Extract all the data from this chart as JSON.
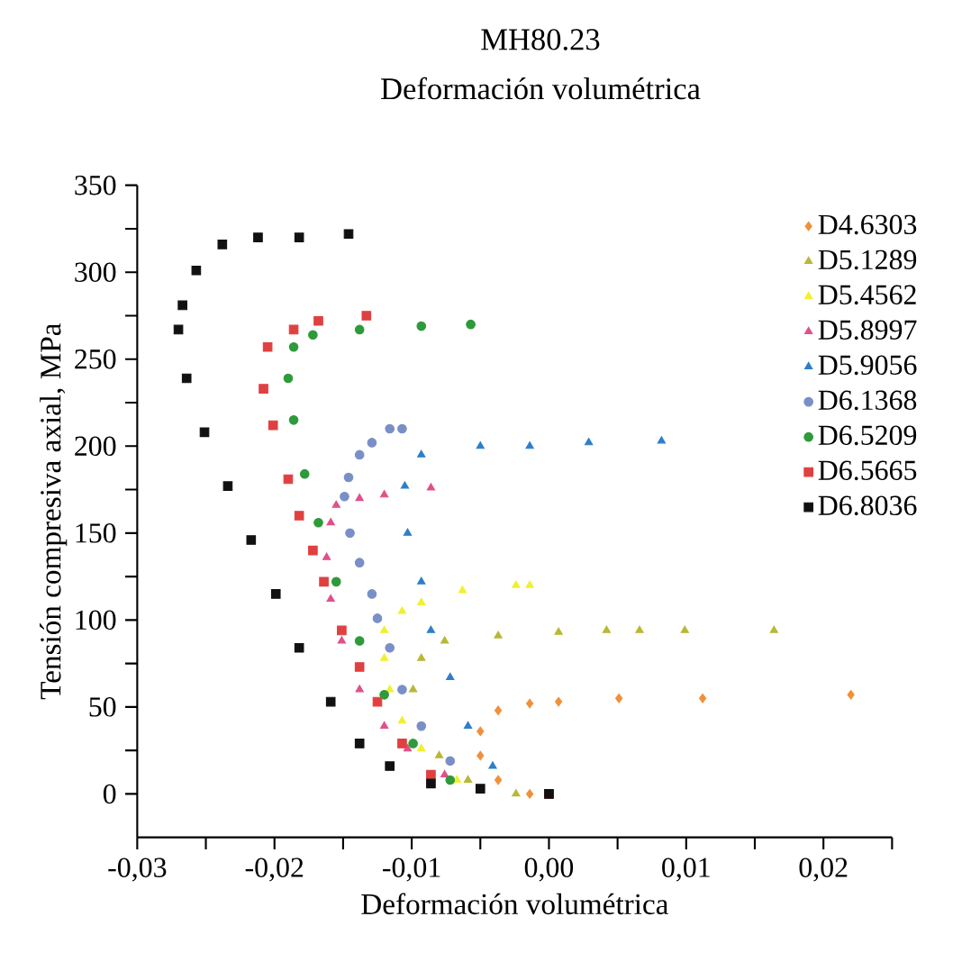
{
  "chart_data": {
    "type": "scatter",
    "title": "MH80.23",
    "subtitle": "Deformación volumétrica",
    "xlabel": "Deformación volumétrica",
    "ylabel": "Tensión compresiva axial, MPa",
    "xlim": [
      -0.03,
      0.025
    ],
    "ylim": [
      -25,
      350
    ],
    "xticks": [
      {
        "value": -0.03,
        "label": "-0,03"
      },
      {
        "value": -0.025,
        "label": null
      },
      {
        "value": -0.02,
        "label": "-0,02"
      },
      {
        "value": -0.015,
        "label": null
      },
      {
        "value": -0.01,
        "label": "-0,01"
      },
      {
        "value": -0.005,
        "label": null
      },
      {
        "value": 0.0,
        "label": "0,00"
      },
      {
        "value": 0.005,
        "label": null
      },
      {
        "value": 0.01,
        "label": "0,01"
      },
      {
        "value": 0.015,
        "label": null
      },
      {
        "value": 0.02,
        "label": "0,02"
      },
      {
        "value": 0.025,
        "label": null
      }
    ],
    "yticks": [
      0,
      {
        "value": 25,
        "label": null
      },
      50,
      {
        "value": 75,
        "label": null
      },
      100,
      {
        "value": 125,
        "label": null
      },
      150,
      {
        "value": 175,
        "label": null
      },
      200,
      {
        "value": 225,
        "label": null
      },
      250,
      {
        "value": 275,
        "label": null
      },
      300,
      {
        "value": 325,
        "label": null
      },
      350
    ],
    "legend": "top right",
    "grid": false,
    "series": [
      {
        "name": "D4.6303",
        "color": "#f0903a",
        "marker": "diamond",
        "x": [
          -0.0014,
          -0.0037,
          -0.005,
          -0.005,
          -0.0037,
          -0.0014,
          0.0007,
          0.0051,
          0.0112,
          0.022
        ],
        "values": [
          0,
          8,
          22,
          36,
          48,
          52,
          53,
          55,
          55,
          57
        ]
      },
      {
        "name": "D5.1289",
        "color": "#b8b838",
        "marker": "triangle",
        "x": [
          -0.0024,
          -0.0059,
          -0.008,
          -0.0093,
          -0.0099,
          -0.0093,
          -0.0076,
          -0.0037,
          0.0007,
          0.0042,
          0.0066,
          0.0099,
          0.0164
        ],
        "values": [
          0,
          8,
          22,
          null,
          60,
          78,
          88,
          91,
          93,
          94,
          94,
          94,
          94
        ]
      },
      {
        "name": "D5.4562",
        "color": "#f0f030",
        "marker": "triangle",
        "x": [
          -0.0067,
          -0.0093,
          -0.0107,
          -0.0116,
          -0.012,
          -0.012,
          -0.0107,
          -0.0093,
          -0.0063,
          -0.0024,
          -0.0014
        ],
        "values": [
          8,
          26,
          42,
          60,
          78,
          94,
          105,
          110,
          117,
          120,
          120
        ]
      },
      {
        "name": "D5.8997",
        "color": "#e0508a",
        "marker": "triangle",
        "x": [
          -0.0076,
          -0.0103,
          -0.012,
          -0.0138,
          -0.0151,
          -0.0159,
          -0.0162,
          -0.0159,
          -0.0155,
          -0.0138,
          -0.012,
          -0.0086
        ],
        "values": [
          11,
          26,
          39,
          60,
          88,
          112,
          136,
          156,
          166,
          170,
          172,
          176
        ]
      },
      {
        "name": "D5.9056",
        "color": "#2e7fc8",
        "marker": "triangle",
        "x": [
          -0.0041,
          -0.0059,
          -0.0072,
          -0.0086,
          -0.0093,
          -0.0103,
          -0.0105,
          -0.0093,
          -0.005,
          -0.0014,
          0.0029,
          0.0082
        ],
        "values": [
          16,
          39,
          67,
          94,
          122,
          150,
          177,
          195,
          200,
          200,
          202,
          203
        ]
      },
      {
        "name": "D6.1368",
        "color": "#7a8fc8",
        "marker": "circle",
        "x": [
          -0.0072,
          -0.0093,
          -0.0107,
          -0.0116,
          -0.0125,
          -0.0129,
          -0.0138,
          -0.0145,
          -0.0149,
          -0.0146,
          -0.0138,
          -0.0129,
          -0.0116,
          -0.0107
        ],
        "values": [
          19,
          39,
          60,
          84,
          101,
          115,
          133,
          150,
          171,
          182,
          195,
          202,
          210,
          210
        ]
      },
      {
        "name": "D6.5209",
        "color": "#2e9a3a",
        "marker": "circle",
        "x": [
          -0.0072,
          -0.0099,
          -0.012,
          -0.0138,
          -0.0155,
          -0.0168,
          -0.0178,
          -0.0186,
          -0.019,
          -0.0186,
          -0.0172,
          -0.0138,
          -0.0093,
          -0.0057
        ],
        "values": [
          8,
          29,
          57,
          88,
          122,
          156,
          184,
          215,
          239,
          257,
          264,
          267,
          269,
          270
        ]
      },
      {
        "name": "D6.5665",
        "color": "#e04040",
        "marker": "square",
        "x": [
          0.0,
          -0.005,
          -0.0086,
          -0.0107,
          -0.0125,
          -0.0138,
          -0.0151,
          -0.0164,
          -0.0172,
          -0.0182,
          -0.019,
          -0.0201,
          -0.0208,
          -0.0205,
          -0.0186,
          -0.0168,
          -0.0133
        ],
        "values": [
          0,
          null,
          11,
          29,
          53,
          73,
          94,
          122,
          140,
          160,
          181,
          212,
          233,
          257,
          267,
          272,
          275
        ]
      },
      {
        "name": "D6.8036",
        "color": "#111111",
        "marker": "square",
        "x": [
          0.0,
          -0.005,
          -0.0086,
          -0.0116,
          -0.0138,
          -0.0159,
          -0.0182,
          -0.0199,
          -0.0217,
          -0.0234,
          -0.0251,
          -0.0264,
          -0.027,
          -0.0267,
          -0.0257,
          -0.0238,
          -0.0212,
          -0.0182,
          -0.0146
        ],
        "values": [
          0,
          3,
          6,
          16,
          29,
          53,
          84,
          115,
          146,
          177,
          208,
          239,
          267,
          281,
          301,
          316,
          320,
          320,
          322
        ]
      }
    ]
  }
}
